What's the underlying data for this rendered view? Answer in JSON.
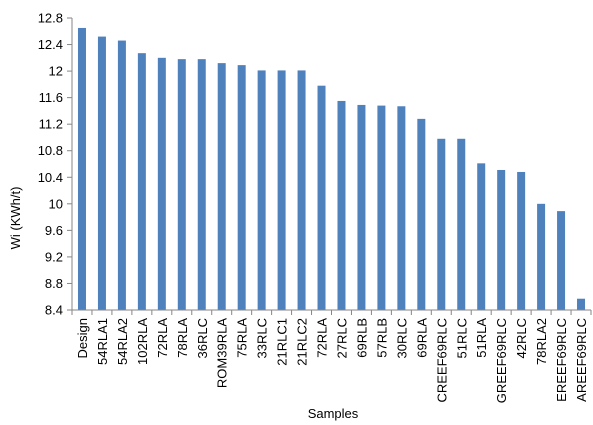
{
  "chart_data": {
    "type": "bar",
    "title": "",
    "xlabel": "Samples",
    "ylabel": "Wi (KWh/t)",
    "ylim": [
      8.4,
      12.8
    ],
    "yticks": [
      "8.4",
      "8.8",
      "9.2",
      "9.6",
      "10",
      "10.4",
      "10.8",
      "11.2",
      "11.6",
      "12",
      "12.4",
      "12.8"
    ],
    "grid": false,
    "legend": "none",
    "bar_color": "#4f81bd",
    "categories": [
      "Design",
      "54RLA1",
      "54RLA2",
      "102RLA",
      "72RLA",
      "78RLA",
      "36RLC",
      "ROM39RLA",
      "75RLA",
      "33RLC",
      "21RLC1",
      "21RLC2",
      "72RLA",
      "27RLC",
      "69RLB",
      "57RLB",
      "30RLC",
      "69RLA",
      "CREEF69RLC",
      "51RLC",
      "51RLA",
      "GREEF69RLC",
      "42RLC",
      "78RLA2",
      "EREEF69RLC",
      "AREEF69RLC"
    ],
    "values": [
      12.65,
      12.52,
      12.46,
      12.27,
      12.2,
      12.18,
      12.18,
      12.12,
      12.09,
      12.01,
      12.01,
      12.01,
      11.78,
      11.55,
      11.49,
      11.48,
      11.47,
      11.28,
      10.98,
      10.98,
      10.61,
      10.51,
      10.48,
      10.0,
      9.89,
      8.57
    ]
  }
}
